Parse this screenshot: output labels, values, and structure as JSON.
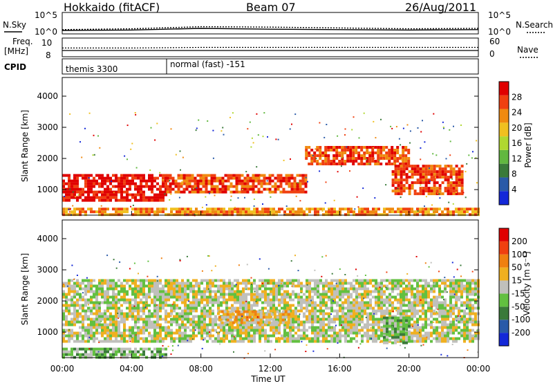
{
  "header": {
    "title_left": "Hokkaido (fitACF)",
    "title_center": "Beam 07",
    "title_right": "26/Aug/2011"
  },
  "colors": {
    "power_scale": [
      "#1428d8",
      "#2a5aa8",
      "#3a7a3a",
      "#62b840",
      "#b0d830",
      "#f0c020",
      "#f08a10",
      "#f04010",
      "#e00000"
    ],
    "velocity_scale": [
      "#1428d8",
      "#2a5aa8",
      "#3a7a3a",
      "#62c040",
      "#c0c0bc",
      "#f0b020",
      "#f08010",
      "#f04010",
      "#e00000"
    ],
    "background": "#ffffff"
  },
  "chart_data": [
    {
      "type": "line",
      "title": "",
      "left_label": "N.Sky",
      "right_label": "N.Search",
      "left_ticks": [
        "10^5",
        "10^0"
      ],
      "right_ticks": [
        "10^5",
        "10^0"
      ],
      "x": [
        "00:00",
        "04:00",
        "08:00",
        "12:00",
        "16:00",
        "20:00",
        "00:00"
      ],
      "series": [
        {
          "name": "N.Sky",
          "values": [
            0.5,
            0.6,
            1.0,
            0.8,
            0.7,
            0.6,
            0.7
          ]
        },
        {
          "name": "N.Search",
          "values": [
            0.7,
            0.9,
            1.4,
            1.3,
            1.1,
            0.9,
            1.0
          ]
        }
      ]
    },
    {
      "type": "line",
      "title": "",
      "left_label": "Freq.",
      "left_unit": "[MHz]",
      "right_label": "Nave",
      "left_ticks": [
        "10",
        "8"
      ],
      "right_ticks": [
        "60",
        "0"
      ],
      "x": [
        "00:00",
        "04:00",
        "08:00",
        "12:00",
        "16:00",
        "20:00",
        "00:00"
      ],
      "series": [
        {
          "name": "Freq.",
          "values": [
            9.0,
            9.0,
            9.0,
            9.0,
            9.0,
            9.0,
            9.0
          ]
        },
        {
          "name": "Nave",
          "values": [
            28,
            28,
            30,
            30,
            30,
            30,
            30
          ]
        }
      ]
    },
    {
      "type": "table",
      "label": "CPID",
      "entries": [
        {
          "start": "00:00",
          "text": "themis 3300"
        },
        {
          "start": "06:00",
          "text": "normal (fast) -151"
        }
      ]
    },
    {
      "type": "heatmap",
      "title": "",
      "ylabel": "Slant Range [km]",
      "ylim": [
        180,
        4600
      ],
      "yticks": [
        "1000",
        "2000",
        "3000",
        "4000"
      ],
      "xlim": [
        "00:00",
        "24:00"
      ],
      "colorbar_label": "Power [dB]",
      "colorbar_ticks": [
        "4",
        "8",
        "12",
        "16",
        "20",
        "24",
        "28"
      ],
      "bands": [
        {
          "t0": 0,
          "t1": 6,
          "r0": 700,
          "r1": 1500,
          "level": 8
        },
        {
          "t0": 6,
          "t1": 14,
          "r0": 900,
          "r1": 1500,
          "level": 7
        },
        {
          "t0": 14,
          "t1": 20,
          "r0": 1800,
          "r1": 2400,
          "level": 7
        },
        {
          "t0": 19,
          "t1": 23,
          "r0": 900,
          "r1": 1800,
          "level": 7
        },
        {
          "t0": 0,
          "t1": 24,
          "r0": 220,
          "r1": 420,
          "level": 6
        }
      ]
    },
    {
      "type": "heatmap",
      "title": "",
      "ylabel": "Slant Range [km]",
      "ylim": [
        180,
        4600
      ],
      "yticks": [
        "1000",
        "2000",
        "3000",
        "4000"
      ],
      "xlim": [
        "00:00",
        "24:00"
      ],
      "xlabel": "Time UT",
      "xticks": [
        "00:00",
        "04:00",
        "08:00",
        "12:00",
        "16:00",
        "20:00",
        "00:00"
      ],
      "colorbar_label": "Velocity [m s⁻¹]",
      "colorbar_ticks": [
        "200",
        "100",
        "50",
        "15",
        "-15",
        "-50",
        "-100",
        "-200"
      ],
      "bands": [
        {
          "t0": 0,
          "t1": 24,
          "r0": 700,
          "r1": 2700,
          "level": 4
        },
        {
          "t0": 9,
          "t1": 13,
          "r0": 1300,
          "r1": 1700,
          "level": 5
        },
        {
          "t0": 0,
          "t1": 6,
          "r0": 220,
          "r1": 500,
          "level": 3
        },
        {
          "t0": 18.5,
          "t1": 20,
          "r0": 700,
          "r1": 1500,
          "level": 3
        }
      ]
    }
  ]
}
